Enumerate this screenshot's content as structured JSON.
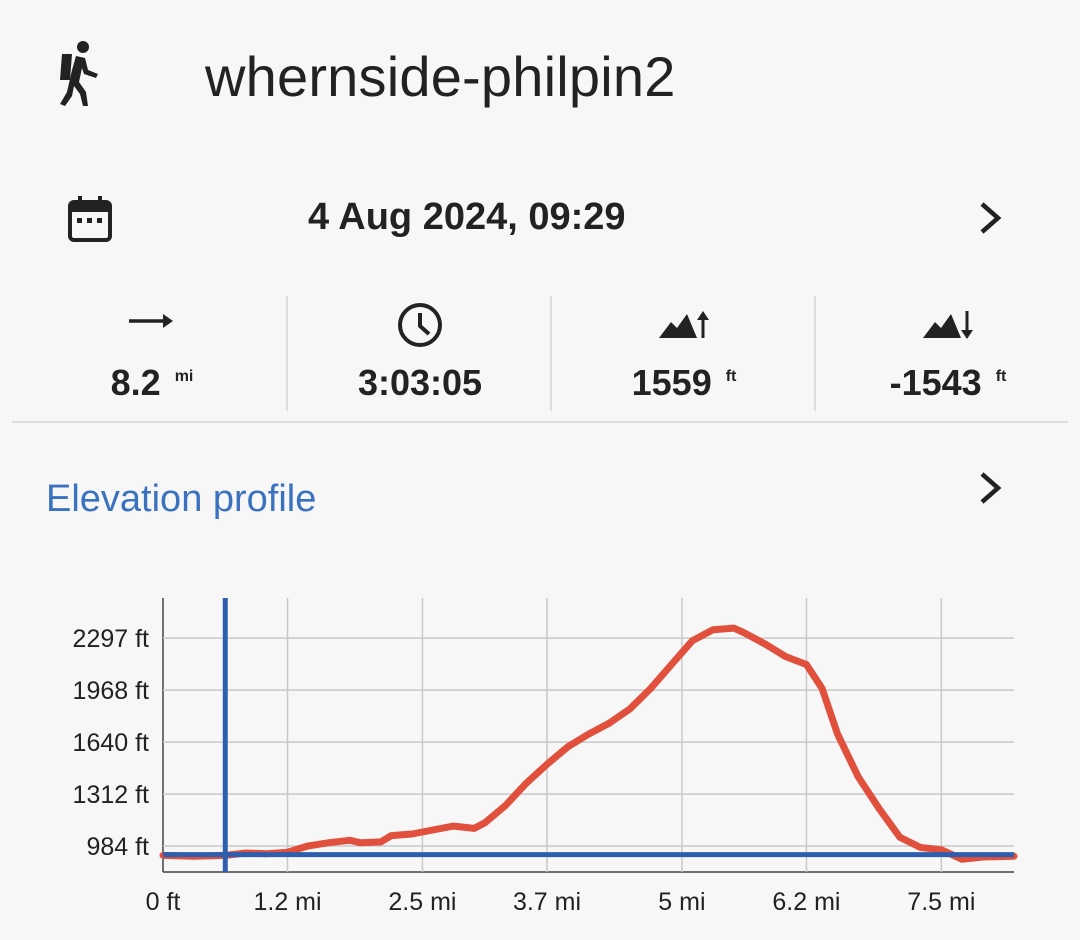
{
  "header": {
    "title": "whernside-philpin2",
    "activity_icon": "hiker-icon"
  },
  "date_row": {
    "icon": "calendar-icon",
    "text": "4 Aug 2024, 09:29",
    "chevron": "chevron-right-icon"
  },
  "stats": [
    {
      "icon": "distance-arrow-icon",
      "value": "8.2",
      "unit": "mi"
    },
    {
      "icon": "clock-icon",
      "value": "3:03:05",
      "unit": ""
    },
    {
      "icon": "ascent-icon",
      "value": "1559",
      "unit": "ft"
    },
    {
      "icon": "descent-icon",
      "value": "-1543",
      "unit": "ft"
    }
  ],
  "elevation": {
    "title": "Elevation profile",
    "chevron": "chevron-right-icon"
  },
  "colors": {
    "accent": "#3a72c0",
    "profile_line": "#e0503c",
    "marker_line": "#2d5fae"
  },
  "chart_data": {
    "type": "line",
    "title": "",
    "xlabel": "",
    "ylabel": "",
    "x_tick_labels": [
      "0 ft",
      "1.2 mi",
      "2.5 mi",
      "3.7 mi",
      "5 mi",
      "6.2 mi",
      "7.5 mi"
    ],
    "x_ticks": [
      0,
      1.2,
      2.5,
      3.7,
      5,
      6.2,
      7.5
    ],
    "y_tick_labels": [
      "984 ft",
      "1312 ft",
      "1640 ft",
      "1968 ft",
      "2297 ft"
    ],
    "y_ticks": [
      984,
      1312,
      1640,
      1968,
      2297
    ],
    "xlim": [
      0,
      8.2
    ],
    "ylim": [
      820,
      2550
    ],
    "grid": true,
    "series": [
      {
        "x": [
          0,
          0.3,
          0.6,
          0.8,
          1.0,
          1.2,
          1.4,
          1.6,
          1.8,
          1.9,
          2.1,
          2.2,
          2.4,
          2.6,
          2.8,
          3.0,
          3.1,
          3.3,
          3.5,
          3.7,
          3.9,
          4.1,
          4.3,
          4.5,
          4.7,
          4.9,
          5.1,
          5.3,
          5.5,
          5.6,
          5.8,
          6.0,
          6.2,
          6.35,
          6.5,
          6.7,
          6.9,
          7.1,
          7.3,
          7.5,
          7.7,
          7.9,
          8.2
        ],
        "y": [
          925,
          920,
          925,
          940,
          935,
          945,
          985,
          1005,
          1020,
          1005,
          1010,
          1050,
          1060,
          1085,
          1110,
          1095,
          1130,
          1240,
          1380,
          1500,
          1610,
          1690,
          1760,
          1850,
          1980,
          2130,
          2280,
          2350,
          2360,
          2330,
          2260,
          2180,
          2130,
          1980,
          1690,
          1420,
          1220,
          1040,
          975,
          960,
          900,
          915,
          920
        ]
      }
    ],
    "marker_x": 0.6,
    "reference_y": 930
  }
}
